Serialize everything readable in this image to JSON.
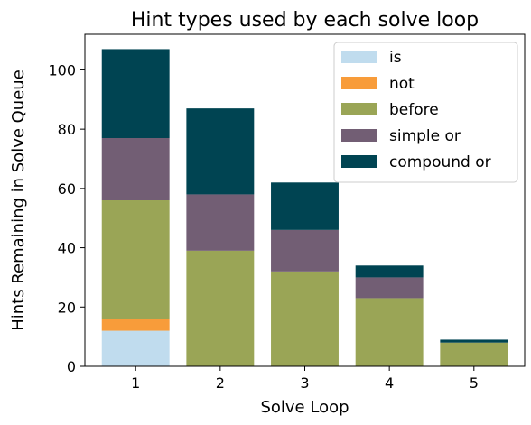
{
  "chart_data": {
    "type": "bar",
    "stacked": true,
    "title": "Hint types used by each solve loop",
    "xlabel": "Solve Loop",
    "ylabel": "Hints Remaining in Solve Queue",
    "categories": [
      "1",
      "2",
      "3",
      "4",
      "5"
    ],
    "ylim": [
      0,
      112
    ],
    "yticks": [
      0,
      20,
      40,
      60,
      80,
      100
    ],
    "grid": false,
    "legend": "top-right",
    "series": [
      {
        "name": "is",
        "color": "#c0dcee",
        "values": [
          12,
          0,
          0,
          0,
          0
        ]
      },
      {
        "name": "not",
        "color": "#f89c3a",
        "values": [
          4,
          0,
          0,
          0,
          0
        ]
      },
      {
        "name": "before",
        "color": "#9aa556",
        "values": [
          40,
          39,
          32,
          23,
          8
        ]
      },
      {
        "name": "simple or",
        "color": "#725e74",
        "values": [
          21,
          19,
          14,
          7,
          0
        ]
      },
      {
        "name": "compound or",
        "color": "#004452",
        "values": [
          30,
          29,
          16,
          4,
          1
        ]
      }
    ]
  }
}
